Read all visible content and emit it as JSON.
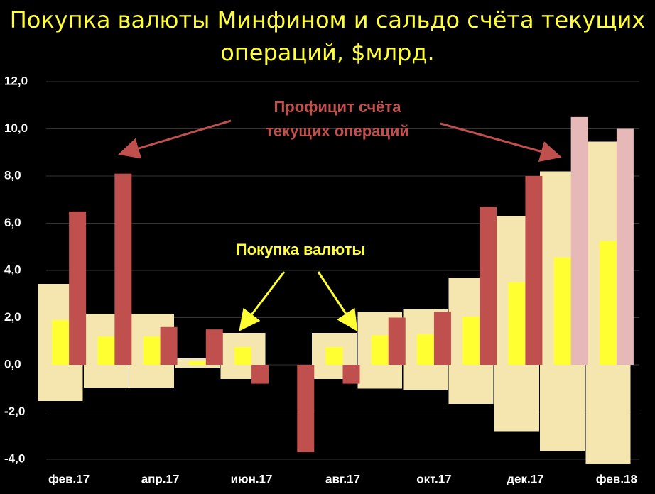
{
  "chart_data": {
    "type": "bar",
    "title": [
      "Покупка валюты Минфином и сальдо счёта текущих",
      "операций, $млрд."
    ],
    "categories": [
      "фев.17",
      null,
      "апр.17",
      null,
      "июн.17",
      null,
      "авг.17",
      null,
      "окт.17",
      null,
      "дек.17",
      null,
      "фев.18"
    ],
    "series": [
      {
        "color": "#ffff33",
        "values": [
          1.9,
          1.2,
          1.2,
          0.15,
          0.75,
          0.0,
          0.75,
          1.25,
          1.3,
          2.05,
          3.5,
          4.55,
          5.25
        ]
      },
      {
        "color": "#c0504d",
        "colors": [
          "#c0504d",
          "#c0504d",
          "#c0504d",
          "#c0504d",
          "#c0504d",
          "#c0504d",
          "#c0504d",
          "#c0504d",
          "#c0504d",
          "#c0504d",
          "#c0504d",
          "#e6b9b8",
          "#e6b9b8"
        ],
        "values": [
          6.5,
          8.1,
          1.6,
          1.5,
          -0.8,
          -3.7,
          -0.8,
          2.0,
          2.25,
          6.7,
          8.0,
          10.5,
          10.0
        ]
      }
    ],
    "annotations": [
      [
        "Профицит счёта",
        "текущих операций"
      ],
      [
        "Покупка валюты"
      ]
    ],
    "ylim": [
      -4,
      12
    ],
    "yticks": [
      {
        "value": -4,
        "label": "-4,0"
      },
      {
        "value": -2,
        "label": "-2,0"
      },
      {
        "value": 0,
        "label": "0,0"
      },
      {
        "value": 2,
        "label": "2,0"
      },
      {
        "value": 4,
        "label": "4,0"
      },
      {
        "value": 6,
        "label": "6,0"
      },
      {
        "value": 8,
        "label": "8,0"
      },
      {
        "value": 10,
        "label": "10,0"
      },
      {
        "value": 12,
        "label": "12,0"
      }
    ],
    "grid": true
  }
}
